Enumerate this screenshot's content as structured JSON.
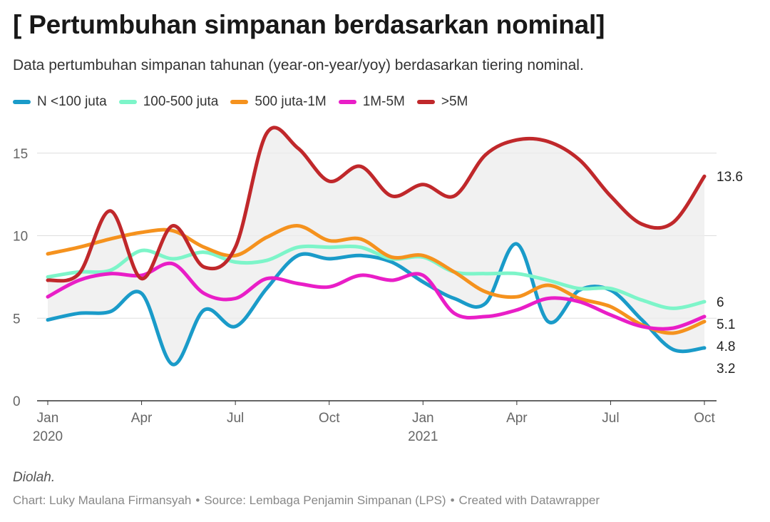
{
  "title": "[ Pertumbuhan simpanan berdasarkan nominal]",
  "subtitle": "Data pertumbuhan simpanan tahunan (year-on-year/yoy) berdasarkan tiering nominal.",
  "note": "Diolah.",
  "footer": {
    "chart_credit": "Chart: Luky Maulana Firmansyah",
    "source": "Source: Lembaga Penjamin Simpanan (LPS)",
    "created_with": "Created with Datawrapper",
    "separator": "•"
  },
  "chart_data": {
    "type": "line",
    "title": "[ Pertumbuhan simpanan berdasarkan nominal]",
    "subtitle": "Data pertumbuhan simpanan tahunan (year-on-year/yoy) berdasarkan tiering nominal.",
    "x": [
      "2020-01",
      "2020-02",
      "2020-03",
      "2020-04",
      "2020-05",
      "2020-06",
      "2020-07",
      "2020-08",
      "2020-09",
      "2020-10",
      "2020-11",
      "2020-12",
      "2021-01",
      "2021-02",
      "2021-03",
      "2021-04",
      "2021-05",
      "2021-06",
      "2021-07",
      "2021-08",
      "2021-09",
      "2021-10"
    ],
    "x_ticks": [
      {
        "x": "2020-01",
        "label": "Jan",
        "year": "2020"
      },
      {
        "x": "2020-04",
        "label": "Apr",
        "year": ""
      },
      {
        "x": "2020-07",
        "label": "Jul",
        "year": ""
      },
      {
        "x": "2020-10",
        "label": "Oct",
        "year": ""
      },
      {
        "x": "2021-01",
        "label": "Jan",
        "year": "2021"
      },
      {
        "x": "2021-04",
        "label": "Apr",
        "year": ""
      },
      {
        "x": "2021-07",
        "label": "Jul",
        "year": ""
      },
      {
        "x": "2021-10",
        "label": "Oct",
        "year": ""
      }
    ],
    "y_ticks": [
      0,
      5,
      10,
      15
    ],
    "ylim": [
      0,
      16.5
    ],
    "grid": "horizontal",
    "legend_position": "top",
    "shaded_range_between_series": [
      ">5M",
      "N <100 juta"
    ],
    "series": [
      {
        "name": "N <100 juta",
        "color": "#1a9bc9",
        "end_label": "3.2",
        "values": [
          4.9,
          5.3,
          5.4,
          6.5,
          2.2,
          5.5,
          4.5,
          6.8,
          8.8,
          8.6,
          8.8,
          8.4,
          7.2,
          6.2,
          5.9,
          9.5,
          4.8,
          6.7,
          6.7,
          4.9,
          3.1,
          3.2
        ]
      },
      {
        "name": "100-500 juta",
        "color": "#7df5c9",
        "end_label": "6",
        "values": [
          7.5,
          7.8,
          7.9,
          9.1,
          8.6,
          9.0,
          8.4,
          8.5,
          9.3,
          9.3,
          9.3,
          8.6,
          8.7,
          7.8,
          7.7,
          7.7,
          7.3,
          6.8,
          6.8,
          6.1,
          5.6,
          6.0
        ]
      },
      {
        "name": "500 juta-1M",
        "color": "#f5921e",
        "end_label": "4.8",
        "values": [
          8.9,
          9.3,
          9.8,
          10.2,
          10.3,
          9.3,
          8.8,
          9.9,
          10.6,
          9.7,
          9.8,
          8.7,
          8.8,
          7.8,
          6.6,
          6.3,
          7.0,
          6.2,
          5.7,
          4.6,
          4.1,
          4.8
        ]
      },
      {
        "name": "1M-5M",
        "color": "#e91ec7",
        "end_label": "5.1",
        "values": [
          6.3,
          7.3,
          7.7,
          7.6,
          8.3,
          6.5,
          6.2,
          7.4,
          7.1,
          6.9,
          7.6,
          7.3,
          7.6,
          5.3,
          5.1,
          5.5,
          6.2,
          6.0,
          5.2,
          4.5,
          4.4,
          5.1
        ]
      },
      {
        "name": ">5M",
        "color": "#c0282b",
        "end_label": "13.6",
        "values": [
          7.3,
          7.7,
          11.5,
          7.4,
          10.6,
          8.1,
          9.3,
          16.2,
          15.3,
          13.3,
          14.2,
          12.4,
          13.1,
          12.4,
          14.9,
          15.8,
          15.7,
          14.6,
          12.4,
          10.7,
          10.8,
          13.6
        ]
      }
    ]
  }
}
